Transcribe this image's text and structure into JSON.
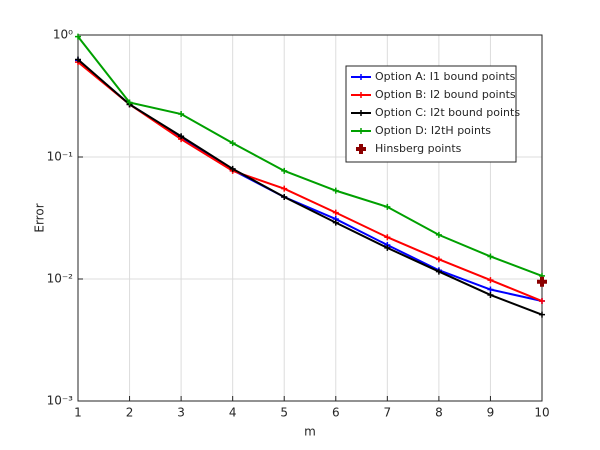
{
  "chart_data": {
    "type": "line",
    "xlabel": "m",
    "ylabel": "Error",
    "log_y": true,
    "grid": true,
    "legend": "upper right",
    "x": [
      1,
      2,
      3,
      4,
      5,
      6,
      7,
      8,
      9,
      10
    ],
    "xlim": [
      1,
      10
    ],
    "xticks": [
      1,
      2,
      3,
      4,
      5,
      6,
      7,
      8,
      9,
      10
    ],
    "ylim": [
      0.001,
      1
    ],
    "yticks": [
      {
        "value": 0.001,
        "label": "10⁻³"
      },
      {
        "value": 0.01,
        "label": "10⁻²"
      },
      {
        "value": 0.1,
        "label": "10⁻¹"
      },
      {
        "value": 1,
        "label": "10⁰"
      }
    ],
    "series": [
      {
        "name": "Option A: I1 bound points",
        "color": "#0000ff",
        "values": [
          0.62,
          0.27,
          0.145,
          0.078,
          0.047,
          0.031,
          0.019,
          0.0118,
          0.0082,
          0.0066
        ]
      },
      {
        "name": "Option B: I2 bound points",
        "color": "#ff0000",
        "values": [
          0.6,
          0.27,
          0.14,
          0.077,
          0.055,
          0.035,
          0.022,
          0.0145,
          0.0098,
          0.0066
        ]
      },
      {
        "name": "Option C: I2t bound points",
        "color": "#000000",
        "values": [
          0.63,
          0.27,
          0.148,
          0.08,
          0.047,
          0.029,
          0.018,
          0.0115,
          0.0074,
          0.0051
        ]
      },
      {
        "name": "Option D: I2tH points",
        "color": "#00a000",
        "values": [
          0.97,
          0.28,
          0.225,
          0.13,
          0.077,
          0.053,
          0.039,
          0.023,
          0.0153,
          0.0106
        ]
      },
      {
        "name": "Hinsberg points",
        "color": "#8b0000",
        "marker_only": true,
        "values": [
          null,
          null,
          null,
          null,
          null,
          null,
          null,
          null,
          null,
          0.0095
        ]
      }
    ]
  }
}
